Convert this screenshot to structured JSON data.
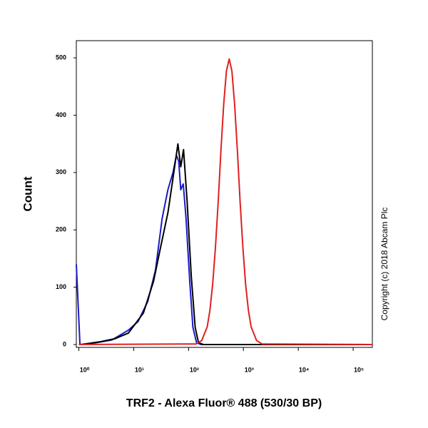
{
  "chart_data": {
    "type": "line",
    "xscale": "log",
    "xlabel": "TRF2 - Alexa Fluor® 488 (530/30 BP)",
    "ylabel": "Count",
    "annotation": "Copyright (c) 2018 Abcam Plc",
    "xlim": [
      0.9,
      224000
    ],
    "ylim": [
      -5,
      530
    ],
    "xticks": [
      {
        "value": 1,
        "label": "10⁰"
      },
      {
        "value": 10,
        "label": "10¹"
      },
      {
        "value": 100,
        "label": "10²"
      },
      {
        "value": 1000,
        "label": "10³"
      },
      {
        "value": 10000,
        "label": "10⁴"
      },
      {
        "value": 100000,
        "label": "10⁵"
      }
    ],
    "yticks": [
      0,
      100,
      200,
      300,
      400,
      500
    ],
    "series": [
      {
        "color": "#1a1ac8",
        "x": [
          0.9,
          1.05,
          2,
          4,
          8,
          12,
          18,
          25,
          33,
          42,
          52,
          60,
          66,
          72,
          80,
          90,
          105,
          120,
          140,
          170,
          224000
        ],
        "values": [
          140,
          0,
          3,
          8,
          25,
          40,
          75,
          130,
          220,
          270,
          300,
          330,
          320,
          270,
          280,
          220,
          110,
          30,
          3,
          0,
          0
        ]
      },
      {
        "color": "#000000",
        "x": [
          1.1,
          2.5,
          4.5,
          8,
          15,
          23,
          31,
          42,
          52,
          64,
          72,
          81,
          94,
          112,
          132,
          152,
          186,
          224000
        ],
        "values": [
          0,
          5,
          10,
          20,
          55,
          110,
          170,
          230,
          290,
          350,
          310,
          340,
          250,
          120,
          30,
          3,
          0,
          0
        ]
      },
      {
        "color": "#e02020",
        "x": [
          1,
          138,
          174,
          219,
          245,
          275,
          309,
          347,
          389,
          437,
          490,
          550,
          617,
          692,
          776,
          871,
          977,
          1096,
          1230,
          1380,
          1738,
          2188,
          224000
        ],
        "values": [
          0,
          1,
          7,
          31,
          60,
          105,
          169,
          249,
          338,
          419,
          477,
          498,
          477,
          419,
          338,
          249,
          169,
          105,
          60,
          31,
          7,
          1,
          0
        ]
      }
    ]
  }
}
